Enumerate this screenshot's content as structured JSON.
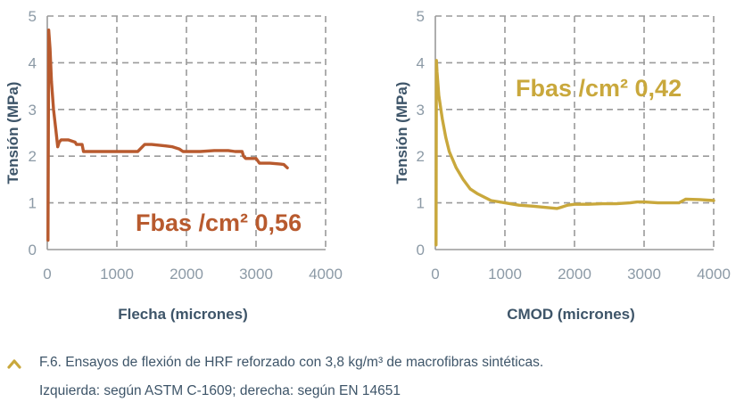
{
  "chart_data": [
    {
      "type": "line",
      "title": "",
      "xlabel": "Flecha (micrones)",
      "ylabel": "Tensión (MPa)",
      "xlim": [
        0,
        4000
      ],
      "ylim": [
        0,
        5
      ],
      "xticks": [
        "0",
        "1000",
        "2000",
        "3000",
        "4000"
      ],
      "yticks": [
        "0",
        "1",
        "2",
        "3",
        "4",
        "5"
      ],
      "grid": true,
      "annotation": "Fbas /cm² 0,56",
      "color": "#b85a2e",
      "series": [
        {
          "x": [
            10,
            20,
            40,
            60,
            90,
            120,
            150,
            170,
            200,
            300,
            400,
            420,
            500,
            520,
            600,
            800,
            1000,
            1200,
            1300,
            1400,
            1500,
            1700,
            1800,
            1900,
            1950,
            2200,
            2400,
            2600,
            2700,
            2800,
            2820,
            2850,
            2900,
            3000,
            3050,
            3200,
            3350,
            3400,
            3450
          ],
          "y": [
            0.2,
            4.7,
            4.3,
            3.6,
            3.0,
            2.6,
            2.2,
            2.3,
            2.35,
            2.35,
            2.3,
            2.25,
            2.25,
            2.1,
            2.1,
            2.1,
            2.1,
            2.1,
            2.1,
            2.25,
            2.25,
            2.22,
            2.2,
            2.15,
            2.1,
            2.1,
            2.12,
            2.12,
            2.1,
            2.1,
            2.0,
            1.95,
            1.95,
            1.95,
            1.85,
            1.85,
            1.83,
            1.82,
            1.75
          ]
        }
      ]
    },
    {
      "type": "line",
      "title": "",
      "xlabel": "CMOD (micrones)",
      "ylabel": "Tensión (MPa)",
      "xlim": [
        0,
        4000
      ],
      "ylim": [
        0,
        5
      ],
      "xticks": [
        "0",
        "1000",
        "2000",
        "3000",
        "4000"
      ],
      "yticks": [
        "0",
        "1",
        "2",
        "3",
        "4",
        "5"
      ],
      "grid": true,
      "annotation": "Fbas /cm² 0,42",
      "color": "#c9a83c",
      "series": [
        {
          "x": [
            10,
            15,
            25,
            50,
            100,
            150,
            200,
            300,
            400,
            500,
            600,
            800,
            1000,
            1200,
            1400,
            1600,
            1750,
            1800,
            1900,
            2000,
            2200,
            2400,
            2600,
            2800,
            2900,
            3000,
            3200,
            3400,
            3500,
            3600,
            3800,
            4000
          ],
          "y": [
            0.1,
            4.05,
            3.8,
            3.3,
            2.8,
            2.4,
            2.1,
            1.75,
            1.5,
            1.3,
            1.2,
            1.05,
            1.0,
            0.95,
            0.93,
            0.9,
            0.88,
            0.9,
            0.95,
            0.97,
            0.97,
            0.98,
            0.98,
            1.0,
            1.02,
            1.02,
            1.0,
            1.0,
            1.0,
            1.08,
            1.07,
            1.05
          ]
        }
      ]
    }
  ],
  "caption": {
    "line1": "F.6. Ensayos de flexión de HRF reforzado con 3,8 kg/m³ de macrofibras sintéticas.",
    "line2": "Izquierda: según ASTM C-1609; derecha: según EN 14651",
    "bullet_icon": "chevron-up-icon",
    "bullet_color": "#c9a83c"
  }
}
